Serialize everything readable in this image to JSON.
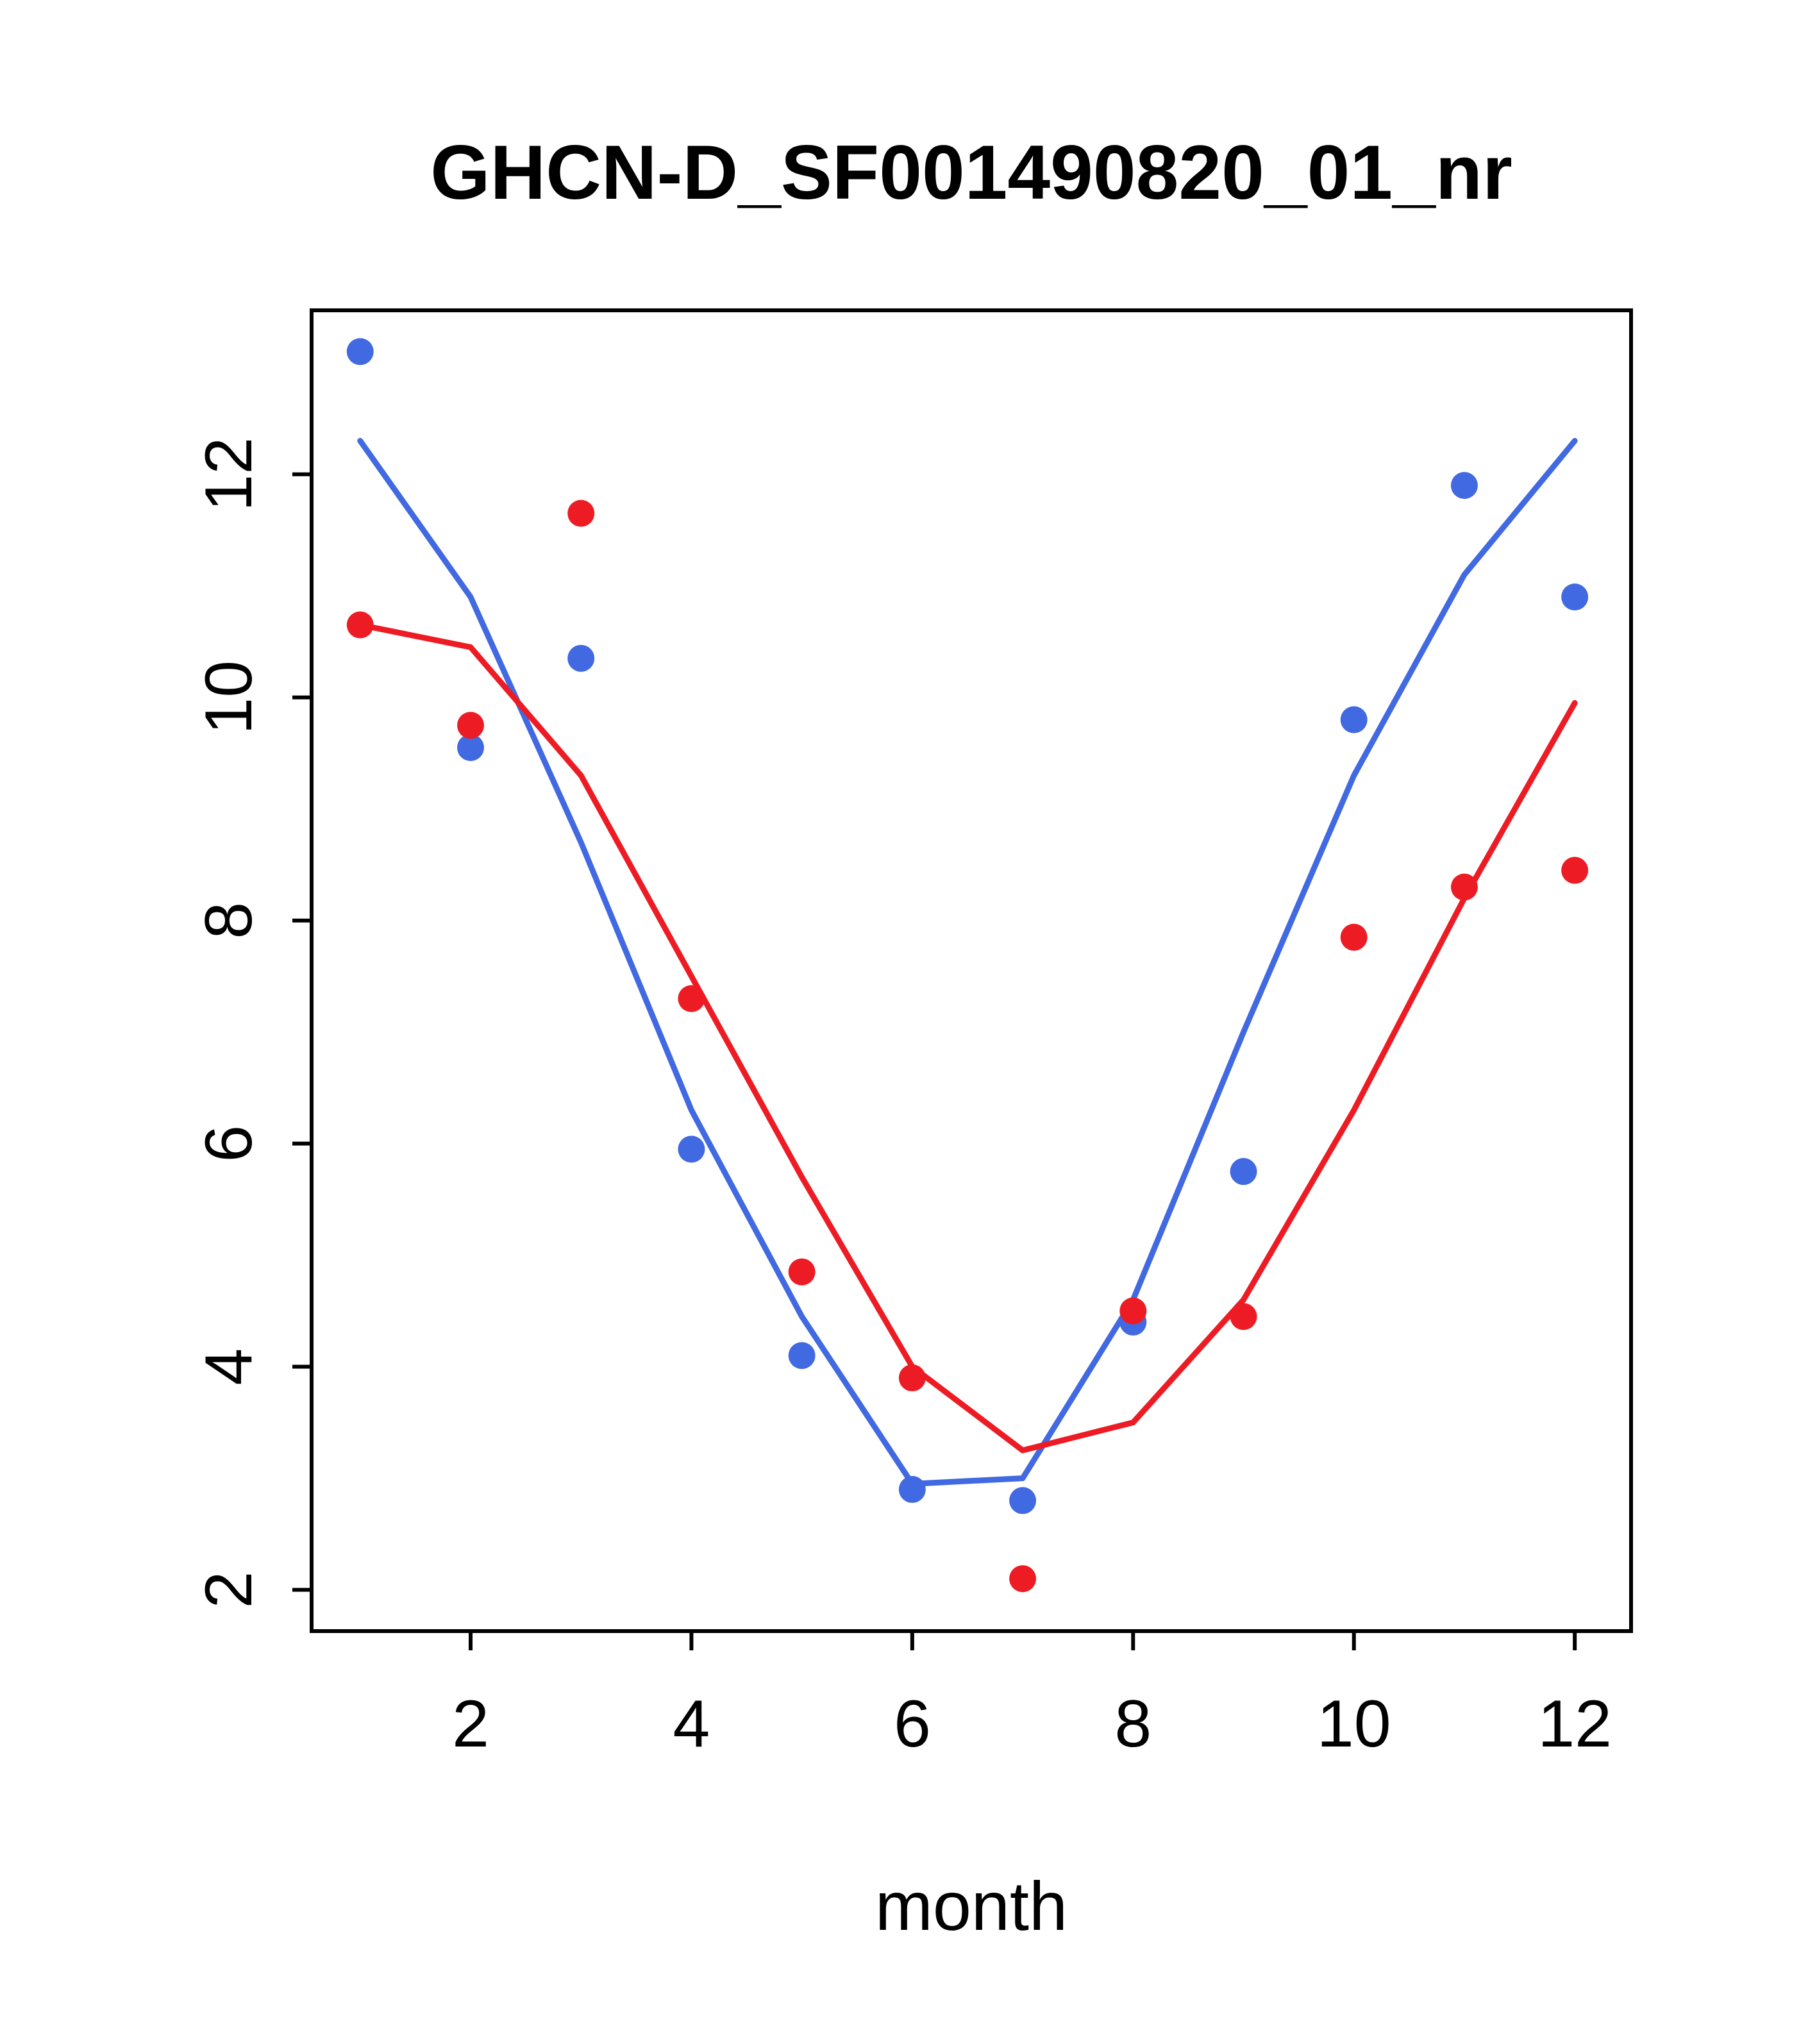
{
  "chart_data": {
    "type": "scatter",
    "title": "GHCN-D_SF001490820_01_nr",
    "xlabel": "month",
    "ylabel": "",
    "x": [
      1,
      2,
      3,
      4,
      5,
      6,
      7,
      8,
      9,
      10,
      11,
      12
    ],
    "xlim": [
      0.56,
      12.51
    ],
    "ylim": [
      1.63,
      13.47
    ],
    "xticks": [
      2,
      4,
      6,
      8,
      10,
      12
    ],
    "yticks": [
      2,
      4,
      6,
      8,
      10,
      12
    ],
    "grid": false,
    "legend": "none",
    "colors": {
      "blue": "#4169E1",
      "red": "#ED1C24",
      "axis": "#000000",
      "background": "#ffffff"
    },
    "series": [
      {
        "name": "blue-line",
        "type": "line",
        "color": "#4169E1",
        "values": [
          12.3,
          10.9,
          8.7,
          6.3,
          4.45,
          2.95,
          3.0,
          4.6,
          7.0,
          9.3,
          11.1,
          12.3
        ]
      },
      {
        "name": "red-line",
        "type": "line",
        "color": "#ED1C24",
        "values": [
          10.65,
          10.45,
          9.3,
          7.5,
          5.7,
          4.0,
          3.25,
          3.5,
          4.6,
          6.3,
          8.2,
          9.95
        ]
      },
      {
        "name": "blue-points",
        "type": "points",
        "color": "#4169E1",
        "values": [
          13.1,
          9.55,
          10.35,
          5.95,
          4.1,
          2.9,
          2.8,
          4.4,
          5.75,
          9.8,
          11.9,
          10.9
        ]
      },
      {
        "name": "red-points",
        "type": "points",
        "color": "#ED1C24",
        "values": [
          10.65,
          9.75,
          11.65,
          7.3,
          4.85,
          3.9,
          2.1,
          4.5,
          4.45,
          7.85,
          8.3,
          8.45
        ]
      }
    ]
  }
}
